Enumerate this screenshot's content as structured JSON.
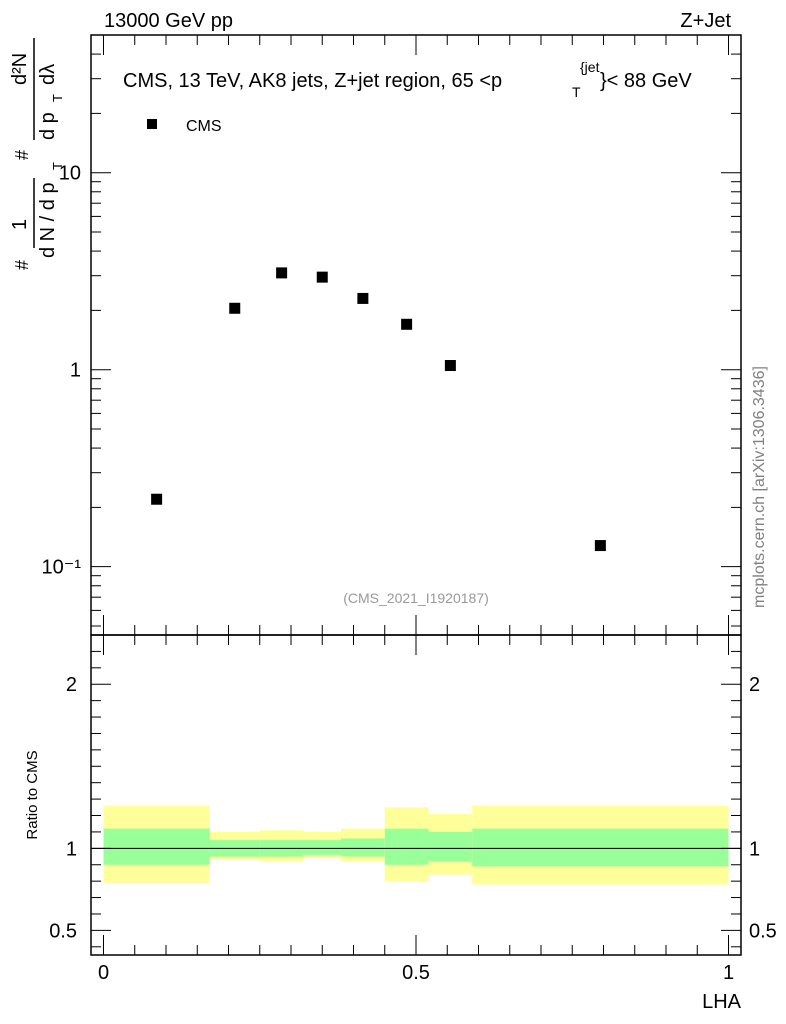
{
  "header": {
    "left": "13000 GeV pp",
    "right": "Z+Jet"
  },
  "title": {
    "main": "CMS, 13 TeV, AK8 jets, Z+jet region, 65 <p",
    "sub": "T",
    "sup": "{jet",
    "tail": "}< 88 GeV"
  },
  "legend": {
    "label": "CMS"
  },
  "analysis_tag": "(CMS_2021_I1920187)",
  "watermark": "mcplots.cern.ch [arXiv:1306.3436]",
  "y_label": {
    "hash": "#",
    "num": "1",
    "den": "d N / d p",
    "den_sub": "T",
    "hash2": "#",
    "frac_num": "d²N",
    "frac_den": "d p",
    "frac_den_sub": "T",
    "frac_den_tail": "dλ"
  },
  "ratio_label": "Ratio to CMS",
  "x_label": "LHA",
  "colors": {
    "band_outer": "#ffff99",
    "band_inner": "#99ff99",
    "marker": "#000000",
    "tag": "#999999",
    "watermark": "#808080"
  },
  "chart_data": [
    {
      "type": "scatter",
      "panel": "main",
      "xlabel": "LHA",
      "ylabel": "1/(dN/dpT) d²N/(dpT dλ)",
      "y_scale": "log",
      "xlim": [
        -0.02,
        1.02
      ],
      "ylim": [
        0.045,
        50
      ],
      "y_tick_labels": [
        "10⁻¹",
        "1",
        "10"
      ],
      "legend_position": "top-left",
      "series": [
        {
          "name": "CMS",
          "x": [
            0.085,
            0.21,
            0.285,
            0.35,
            0.415,
            0.485,
            0.555,
            0.795
          ],
          "y": [
            0.22,
            2.05,
            3.1,
            2.95,
            2.3,
            1.7,
            1.05,
            0.128
          ]
        }
      ]
    },
    {
      "type": "area",
      "panel": "ratio",
      "xlabel": "LHA",
      "ylabel": "Ratio to CMS",
      "xlim": [
        -0.02,
        1.02
      ],
      "ylim": [
        0.35,
        2.3
      ],
      "x_tick_labels": [
        "0",
        "0.5",
        "1"
      ],
      "y_tick_labels": [
        "0.5",
        "1",
        "2"
      ],
      "reference_line": 1.0,
      "bands": [
        {
          "x0": 0.0,
          "x1": 0.17,
          "inner": [
            0.9,
            1.12
          ],
          "outer": [
            0.79,
            1.26
          ]
        },
        {
          "x0": 0.17,
          "x1": 0.25,
          "inner": [
            0.95,
            1.05
          ],
          "outer": [
            0.93,
            1.1
          ]
        },
        {
          "x0": 0.25,
          "x1": 0.32,
          "inner": [
            0.95,
            1.05
          ],
          "outer": [
            0.92,
            1.11
          ]
        },
        {
          "x0": 0.32,
          "x1": 0.38,
          "inner": [
            0.96,
            1.05
          ],
          "outer": [
            0.94,
            1.1
          ]
        },
        {
          "x0": 0.38,
          "x1": 0.45,
          "inner": [
            0.95,
            1.06
          ],
          "outer": [
            0.92,
            1.12
          ]
        },
        {
          "x0": 0.45,
          "x1": 0.52,
          "inner": [
            0.9,
            1.12
          ],
          "outer": [
            0.8,
            1.25
          ]
        },
        {
          "x0": 0.52,
          "x1": 0.59,
          "inner": [
            0.92,
            1.1
          ],
          "outer": [
            0.84,
            1.21
          ]
        },
        {
          "x0": 0.59,
          "x1": 1.0,
          "inner": [
            0.89,
            1.12
          ],
          "outer": [
            0.78,
            1.26
          ]
        }
      ]
    }
  ]
}
